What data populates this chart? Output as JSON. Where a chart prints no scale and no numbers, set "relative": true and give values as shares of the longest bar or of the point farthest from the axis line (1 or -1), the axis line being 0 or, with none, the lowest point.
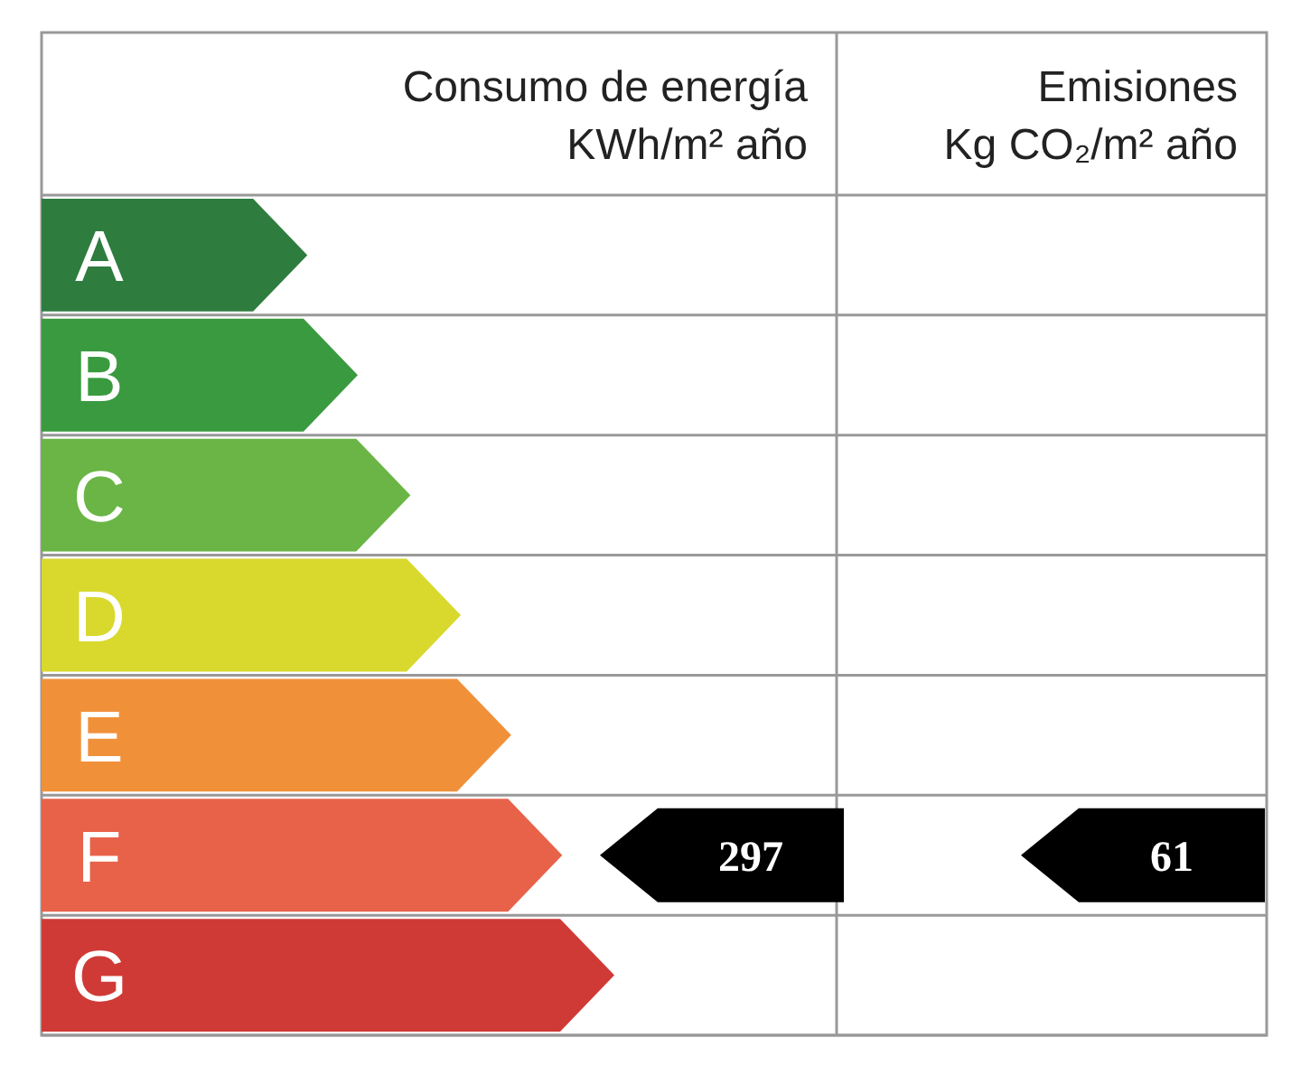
{
  "chart_data": {
    "type": "bar",
    "orientation": "horizontal",
    "relative": true,
    "categories": [
      "A",
      "B",
      "C",
      "D",
      "E",
      "F",
      "G"
    ],
    "values": [
      0.464,
      0.552,
      0.644,
      0.732,
      0.82,
      0.909,
      1
    ],
    "colors": [
      "#2e7d3e",
      "#3a9a3f",
      "#6ab545",
      "#d8d92c",
      "#f0913a",
      "#e8624a",
      "#d03a36"
    ],
    "annotations": [
      "Consumo de energía\nKWh/m² año",
      "Emisiones\nKg CO₂/m² año",
      "297",
      "61"
    ]
  }
}
